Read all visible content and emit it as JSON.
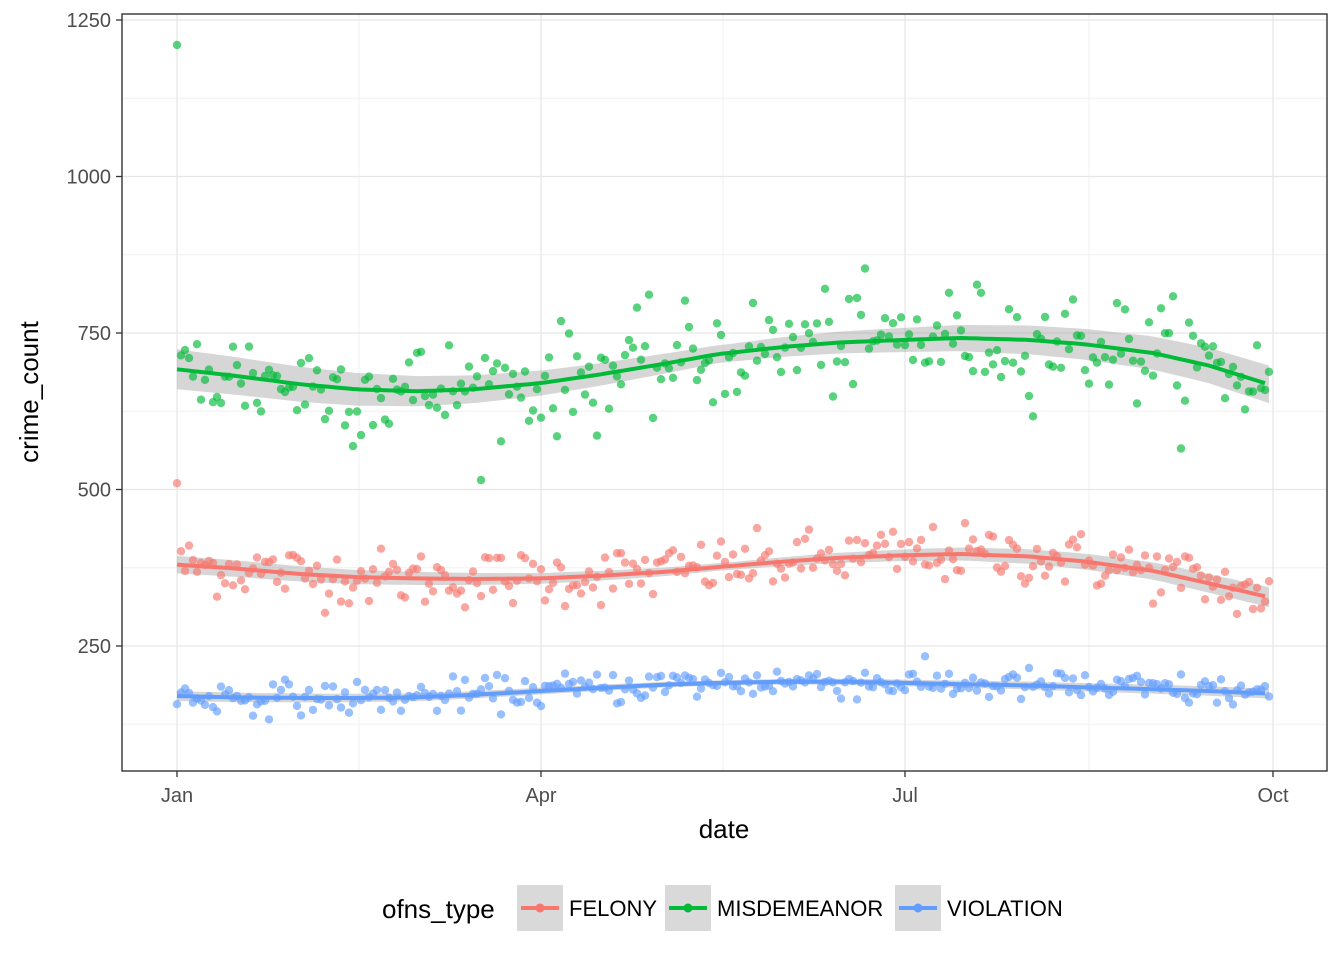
{
  "chart_data": {
    "type": "scatter",
    "title": "",
    "xlabel": "date",
    "ylabel": "crime_count",
    "x_range": [
      "2016-01-01",
      "2016-09-30"
    ],
    "ylim": [
      75,
      1250
    ],
    "y_ticks": [
      250,
      500,
      750,
      1000,
      1250
    ],
    "x_ticks": [
      {
        "date": "2016-01-01",
        "label": "Jan"
      },
      {
        "date": "2016-04-01",
        "label": "Apr"
      },
      {
        "date": "2016-07-01",
        "label": "Jul"
      },
      {
        "date": "2016-10-01",
        "label": "Oct"
      }
    ],
    "grid": true,
    "legend_position": "bottom",
    "legend_title": "ofns_type",
    "smoothing": "loess with confidence band",
    "series": [
      {
        "name": "FELONY",
        "color": "#F8766D",
        "points": "daily counts, about 300-480, first day 510",
        "trend": [
          {
            "x": "2016-01-01",
            "y": 380
          },
          {
            "x": "2016-01-15",
            "y": 374
          },
          {
            "x": "2016-02-01",
            "y": 365
          },
          {
            "x": "2016-02-15",
            "y": 360
          },
          {
            "x": "2016-03-01",
            "y": 358
          },
          {
            "x": "2016-03-15",
            "y": 357
          },
          {
            "x": "2016-04-01",
            "y": 358
          },
          {
            "x": "2016-04-15",
            "y": 362
          },
          {
            "x": "2016-05-01",
            "y": 368
          },
          {
            "x": "2016-05-15",
            "y": 376
          },
          {
            "x": "2016-06-01",
            "y": 385
          },
          {
            "x": "2016-06-15",
            "y": 391
          },
          {
            "x": "2016-07-01",
            "y": 395
          },
          {
            "x": "2016-07-15",
            "y": 397
          },
          {
            "x": "2016-08-01",
            "y": 393
          },
          {
            "x": "2016-08-15",
            "y": 385
          },
          {
            "x": "2016-09-01",
            "y": 370
          },
          {
            "x": "2016-09-15",
            "y": 350
          },
          {
            "x": "2016-09-30",
            "y": 328
          }
        ]
      },
      {
        "name": "MISDEMEANOR",
        "color": "#00BA38",
        "points": "daily counts, about 510-960, first day 1210",
        "trend": [
          {
            "x": "2016-01-01",
            "y": 692
          },
          {
            "x": "2016-01-15",
            "y": 682
          },
          {
            "x": "2016-02-01",
            "y": 668
          },
          {
            "x": "2016-02-15",
            "y": 660
          },
          {
            "x": "2016-03-01",
            "y": 657
          },
          {
            "x": "2016-03-15",
            "y": 660
          },
          {
            "x": "2016-04-01",
            "y": 670
          },
          {
            "x": "2016-04-15",
            "y": 683
          },
          {
            "x": "2016-05-01",
            "y": 700
          },
          {
            "x": "2016-05-15",
            "y": 716
          },
          {
            "x": "2016-06-01",
            "y": 728
          },
          {
            "x": "2016-06-15",
            "y": 735
          },
          {
            "x": "2016-07-01",
            "y": 739
          },
          {
            "x": "2016-07-15",
            "y": 742
          },
          {
            "x": "2016-08-01",
            "y": 739
          },
          {
            "x": "2016-08-15",
            "y": 732
          },
          {
            "x": "2016-09-01",
            "y": 718
          },
          {
            "x": "2016-09-15",
            "y": 698
          },
          {
            "x": "2016-09-30",
            "y": 668
          }
        ]
      },
      {
        "name": "VIOLATION",
        "color": "#619CFF",
        "points": "daily counts, about 105-240",
        "trend": [
          {
            "x": "2016-01-01",
            "y": 170
          },
          {
            "x": "2016-01-15",
            "y": 168
          },
          {
            "x": "2016-02-01",
            "y": 167
          },
          {
            "x": "2016-02-15",
            "y": 167
          },
          {
            "x": "2016-03-01",
            "y": 168
          },
          {
            "x": "2016-03-15",
            "y": 172
          },
          {
            "x": "2016-04-01",
            "y": 178
          },
          {
            "x": "2016-04-15",
            "y": 183
          },
          {
            "x": "2016-05-01",
            "y": 188
          },
          {
            "x": "2016-05-15",
            "y": 191
          },
          {
            "x": "2016-06-01",
            "y": 193
          },
          {
            "x": "2016-06-15",
            "y": 193
          },
          {
            "x": "2016-07-01",
            "y": 191
          },
          {
            "x": "2016-07-15",
            "y": 189
          },
          {
            "x": "2016-08-01",
            "y": 187
          },
          {
            "x": "2016-08-15",
            "y": 184
          },
          {
            "x": "2016-09-01",
            "y": 181
          },
          {
            "x": "2016-09-15",
            "y": 178
          },
          {
            "x": "2016-09-30",
            "y": 174
          }
        ]
      }
    ]
  }
}
